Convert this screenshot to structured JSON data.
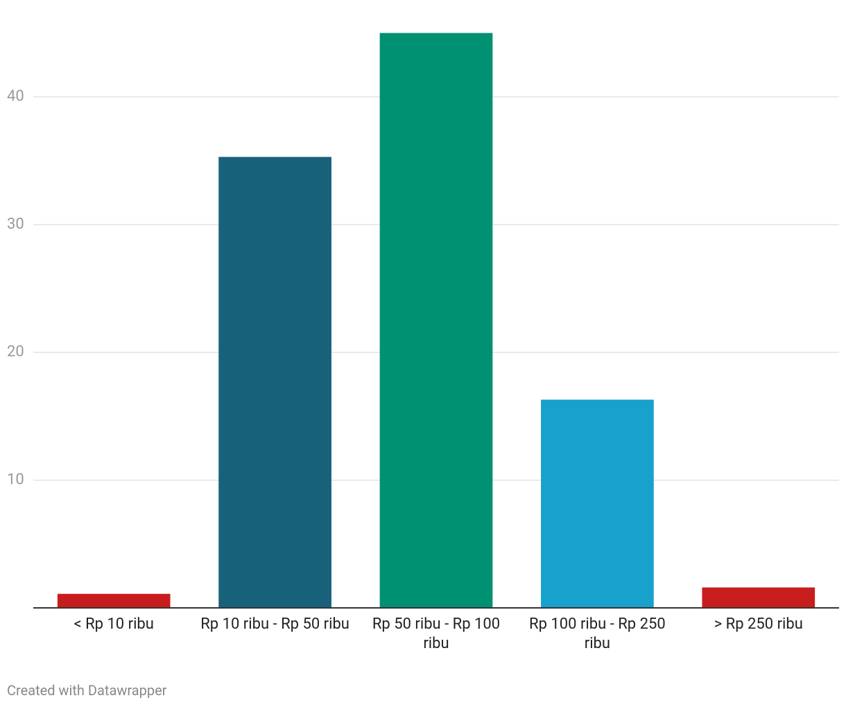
{
  "chart_data": {
    "type": "bar",
    "categories": [
      "< Rp 10 ribu",
      "Rp 10 ribu - Rp 50 ribu",
      "Rp 50 ribu - Rp 100 ribu",
      "Rp 100 ribu - Rp 250 ribu",
      "> Rp 250 ribu"
    ],
    "values": [
      1.1,
      35.3,
      45.0,
      16.3,
      1.6
    ],
    "colors": [
      "#c71e1d",
      "#18617b",
      "#009072",
      "#18a1cd",
      "#c71e1d"
    ],
    "ylim": [
      0,
      45
    ],
    "yticks": [
      10,
      20,
      30,
      40
    ],
    "grid": true,
    "credit": "Created with Datawrapper"
  }
}
